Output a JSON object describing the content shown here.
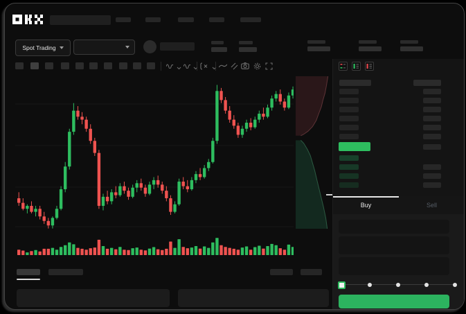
{
  "brand": {
    "name": "OKX"
  },
  "market_selector": {
    "label": "Spot Trading"
  },
  "trade_panel": {
    "tabs": [
      {
        "label": "Buy",
        "active": true
      },
      {
        "label": "Sell",
        "active": false
      }
    ],
    "active_tab": "Buy",
    "field_count": 3,
    "slider": {
      "stops": 5,
      "value_percent": 0
    }
  },
  "order_book": {
    "ask_rows": 6,
    "bid_rows": 4,
    "view_icons": [
      "book-combined-icon",
      "book-bids-icon",
      "book-asks-icon"
    ],
    "last_price_color": "#2ebd5f"
  },
  "toolbar_icons": [
    "indicator-wave-icon",
    "indicator-wave-icon",
    "function-icon",
    "trendline-icon",
    "compare-icon",
    "camera-icon",
    "settings-icon",
    "fullscreen-icon"
  ],
  "colors": {
    "up": "#2ebd5f",
    "down": "#ef5350",
    "buy_button": "#2cb35f",
    "tab_active_line": "#e6e6e6"
  },
  "chart_data": [
    {
      "type": "candlestick",
      "title": "",
      "xlabel": "",
      "ylabel": "",
      "ylim": [
        0,
        100
      ],
      "grid": true,
      "colors": {
        "up": "#2ebd5f",
        "down": "#ef5350"
      },
      "ohlc": [
        [
          22,
          26,
          17,
          19
        ],
        [
          19,
          22,
          14,
          15
        ],
        [
          15,
          18,
          12,
          17
        ],
        [
          17,
          20,
          12,
          13
        ],
        [
          13,
          17,
          10,
          15
        ],
        [
          15,
          17,
          8,
          10
        ],
        [
          10,
          13,
          5,
          7
        ],
        [
          7,
          9,
          2,
          4
        ],
        [
          4,
          10,
          2,
          9
        ],
        [
          9,
          17,
          8,
          15
        ],
        [
          15,
          30,
          14,
          28
        ],
        [
          28,
          46,
          26,
          43
        ],
        [
          43,
          68,
          41,
          66
        ],
        [
          66,
          85,
          64,
          80
        ],
        [
          80,
          83,
          74,
          76
        ],
        [
          76,
          79,
          71,
          74
        ],
        [
          74,
          76,
          66,
          68
        ],
        [
          68,
          71,
          58,
          60
        ],
        [
          60,
          62,
          50,
          52
        ],
        [
          52,
          54,
          15,
          17
        ],
        [
          17,
          25,
          14,
          23
        ],
        [
          23,
          27,
          18,
          20
        ],
        [
          20,
          28,
          18,
          26
        ],
        [
          26,
          30,
          22,
          24
        ],
        [
          24,
          32,
          23,
          30
        ],
        [
          30,
          33,
          25,
          27
        ],
        [
          27,
          29,
          21,
          23
        ],
        [
          23,
          31,
          22,
          29
        ],
        [
          29,
          34,
          26,
          32
        ],
        [
          32,
          35,
          27,
          29
        ],
        [
          29,
          31,
          23,
          25
        ],
        [
          25,
          33,
          24,
          31
        ],
        [
          31,
          36,
          28,
          34
        ],
        [
          34,
          37,
          29,
          31
        ],
        [
          31,
          33,
          25,
          27
        ],
        [
          27,
          30,
          20,
          22
        ],
        [
          22,
          24,
          11,
          13
        ],
        [
          13,
          20,
          12,
          18
        ],
        [
          18,
          35,
          17,
          33
        ],
        [
          33,
          36,
          28,
          30
        ],
        [
          30,
          34,
          26,
          28
        ],
        [
          28,
          36,
          27,
          34
        ],
        [
          34,
          40,
          32,
          38
        ],
        [
          38,
          42,
          34,
          36
        ],
        [
          36,
          44,
          35,
          42
        ],
        [
          42,
          48,
          40,
          46
        ],
        [
          46,
          62,
          45,
          60
        ],
        [
          60,
          97,
          58,
          93
        ],
        [
          93,
          95,
          85,
          87
        ],
        [
          87,
          89,
          78,
          80
        ],
        [
          80,
          83,
          72,
          74
        ],
        [
          74,
          77,
          68,
          70
        ],
        [
          70,
          72,
          62,
          64
        ],
        [
          64,
          70,
          62,
          68
        ],
        [
          68,
          74,
          66,
          72
        ],
        [
          72,
          75,
          67,
          69
        ],
        [
          69,
          76,
          68,
          74
        ],
        [
          74,
          80,
          72,
          78
        ],
        [
          78,
          82,
          74,
          76
        ],
        [
          76,
          84,
          75,
          82
        ],
        [
          82,
          90,
          80,
          88
        ],
        [
          88,
          93,
          86,
          91
        ],
        [
          91,
          94,
          84,
          86
        ],
        [
          86,
          88,
          80,
          82
        ],
        [
          82,
          92,
          81,
          90
        ],
        [
          90,
          96,
          88,
          94
        ]
      ],
      "volumes": [
        30,
        25,
        15,
        22,
        28,
        20,
        35,
        35,
        40,
        30,
        45,
        55,
        70,
        60,
        40,
        35,
        30,
        38,
        42,
        85,
        50,
        35,
        40,
        32,
        45,
        30,
        28,
        38,
        42,
        30,
        26,
        36,
        44,
        32,
        28,
        35,
        75,
        40,
        88,
        45,
        38,
        42,
        50,
        36,
        48,
        40,
        70,
        95,
        55,
        45,
        40,
        35,
        30,
        42,
        48,
        30,
        44,
        52,
        36,
        50,
        62,
        55,
        38,
        30,
        58,
        45
      ]
    },
    {
      "type": "area",
      "name": "depth",
      "legend": "off",
      "colors": {
        "asks_fill": "#2a1719",
        "asks_line": "#5d3336",
        "bids_fill": "#13291f",
        "bids_line": "#2c5a42"
      },
      "asks_curve": [
        [
          0.88,
          0
        ],
        [
          0.84,
          0.06
        ],
        [
          0.8,
          0.11
        ],
        [
          0.74,
          0.16
        ],
        [
          0.7,
          0.2
        ],
        [
          0.62,
          0.25
        ],
        [
          0.56,
          0.29
        ],
        [
          0.46,
          0.33
        ],
        [
          0.34,
          0.36
        ],
        [
          0.22,
          0.38
        ],
        [
          0.14,
          0.39
        ]
      ],
      "bids_curve": [
        [
          0.14,
          0.42
        ],
        [
          0.22,
          0.44
        ],
        [
          0.32,
          0.48
        ],
        [
          0.4,
          0.52
        ],
        [
          0.46,
          0.57
        ],
        [
          0.52,
          0.62
        ],
        [
          0.58,
          0.68
        ],
        [
          0.64,
          0.74
        ],
        [
          0.7,
          0.8
        ],
        [
          0.76,
          0.86
        ],
        [
          0.82,
          0.93
        ],
        [
          0.86,
          1
        ]
      ]
    }
  ]
}
